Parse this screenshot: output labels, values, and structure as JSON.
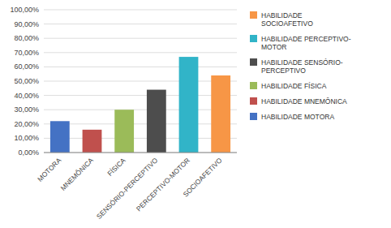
{
  "chart_data": {
    "type": "bar",
    "categories": [
      "MOTORA",
      "MNEMÔNICA",
      "FÍSICA",
      "SENSÓRIO-PERCEPTIVO",
      "PERCEPTIVO-MOTOR",
      "SOCIOAFETIVO"
    ],
    "series": [
      {
        "name": "HABILIDADE MOTORA",
        "color": "#4472C4",
        "values": [
          0.22,
          null,
          null,
          null,
          null,
          null
        ]
      },
      {
        "name": "HABILIDADE MNEMÔNICA",
        "color": "#C0504D",
        "values": [
          null,
          0.16,
          null,
          null,
          null,
          null
        ]
      },
      {
        "name": "HABILIDADE FÍSICA",
        "color": "#9BBB59",
        "values": [
          null,
          null,
          0.3,
          null,
          null,
          null
        ]
      },
      {
        "name": "HABILIDADE SENSÓRIO-\nPERCEPTIVO",
        "color": "#4D4D4D",
        "values": [
          null,
          null,
          null,
          0.44,
          null,
          null
        ]
      },
      {
        "name": "HABILIDADE PERCEPTIVO-\nMOTOR",
        "color": "#31B4C8",
        "values": [
          null,
          null,
          null,
          null,
          0.67,
          null
        ]
      },
      {
        "name": "HABILIDADE\nSOCIOAFETIVO",
        "color": "#F79646",
        "values": [
          null,
          null,
          null,
          null,
          null,
          0.54
        ]
      }
    ],
    "stacked": true,
    "ylim": [
      0,
      1.0
    ],
    "yticks": [
      {
        "value": 0.0,
        "label": "0,00%"
      },
      {
        "value": 0.1,
        "label": "10,00%"
      },
      {
        "value": 0.2,
        "label": "20,00%"
      },
      {
        "value": 0.3,
        "label": "30,00%"
      },
      {
        "value": 0.4,
        "label": "40,00%"
      },
      {
        "value": 0.5,
        "label": "50,00%"
      },
      {
        "value": 0.6,
        "label": "60,00%"
      },
      {
        "value": 0.7,
        "label": "70,00%"
      },
      {
        "value": 0.8,
        "label": "80,00%"
      },
      {
        "value": 0.9,
        "label": "90,00%"
      },
      {
        "value": 1.0,
        "label": "100,00%"
      }
    ],
    "grid": true,
    "legend": "right"
  }
}
